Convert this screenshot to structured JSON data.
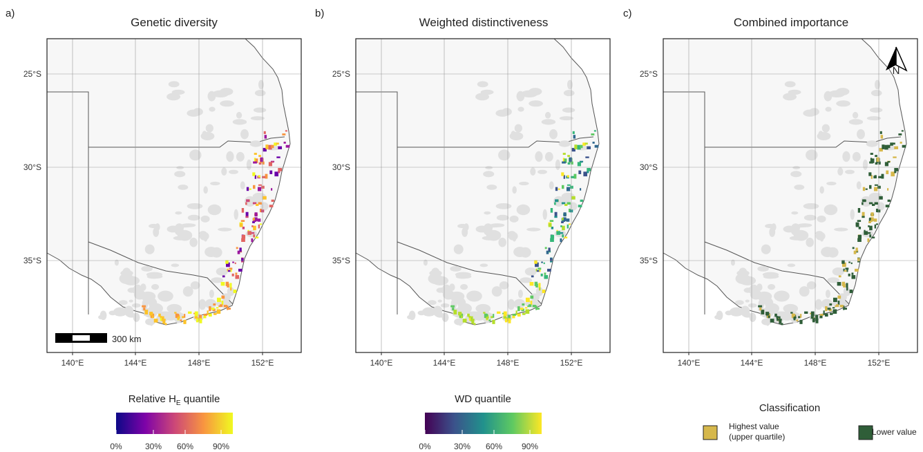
{
  "panels": [
    {
      "label": "a)",
      "title": "Genetic diversity",
      "legend": {
        "title": {
          "text": "Relative H",
          "subscript": "E",
          "suffix": " quantile"
        },
        "ticks": [
          "0%",
          "30%",
          "60%",
          "90%"
        ]
      }
    },
    {
      "label": "b)",
      "title": "Weighted distinctiveness",
      "legend": {
        "title": "WD quantile",
        "ticks": [
          "0%",
          "30%",
          "60%",
          "90%"
        ]
      }
    },
    {
      "label": "c)",
      "title": "Combined importance"
    }
  ],
  "map": {
    "lat_labels": [
      "25°S",
      "30°S",
      "35°S"
    ],
    "lon_labels": [
      "140°E",
      "144°E",
      "148°E",
      "152°E"
    ]
  },
  "scale_bar": "300 km",
  "north_arrow": "N",
  "classification": {
    "title": "Classification",
    "items": [
      {
        "label": [
          "Highest value",
          "(upper quartile)"
        ]
      },
      {
        "label": "Lower value"
      }
    ]
  }
}
